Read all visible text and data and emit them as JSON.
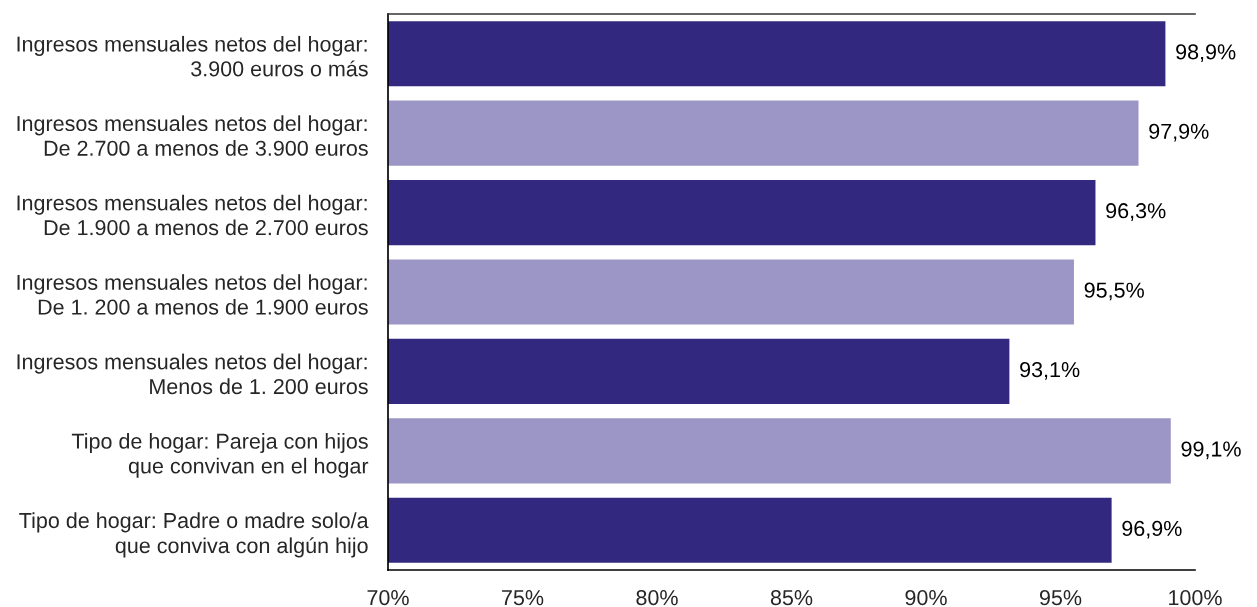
{
  "chart_data": {
    "type": "bar",
    "orientation": "horizontal",
    "categories": [
      "Ingresos mensuales netos del hogar:\n3.900 euros o más",
      "Ingresos mensuales netos del hogar:\nDe 2.700 a menos de 3.900 euros",
      "Ingresos mensuales netos del hogar:\nDe 1.900 a menos de 2.700 euros",
      "Ingresos mensuales netos del hogar:\nDe 1. 200 a menos de 1.900 euros",
      "Ingresos mensuales netos del hogar:\nMenos de 1. 200 euros",
      "Tipo de hogar: Pareja con hijos\nque convivan en el hogar",
      "Tipo de hogar: Padre o madre solo/a\nque conviva con algún hijo"
    ],
    "values": [
      98.9,
      97.9,
      96.3,
      95.5,
      93.1,
      99.1,
      96.9
    ],
    "colors": [
      "#32287f",
      "#9b96c6",
      "#32287f",
      "#9b96c6",
      "#32287f",
      "#9b96c6",
      "#32287f"
    ],
    "value_labels": [
      "98,9%",
      "97,9%",
      "96,3%",
      "95,5%",
      "93,1%",
      "99,1%",
      "96,9%"
    ],
    "xlim": [
      70,
      100
    ],
    "xticks": [
      {
        "value": 70,
        "label": "70%"
      },
      {
        "value": 75,
        "label": "75%"
      },
      {
        "value": 80,
        "label": "80%"
      },
      {
        "value": 85,
        "label": "85%"
      },
      {
        "value": 90,
        "label": "90%"
      },
      {
        "value": 95,
        "label": "95%"
      },
      {
        "value": 100,
        "label": "100%"
      }
    ]
  }
}
